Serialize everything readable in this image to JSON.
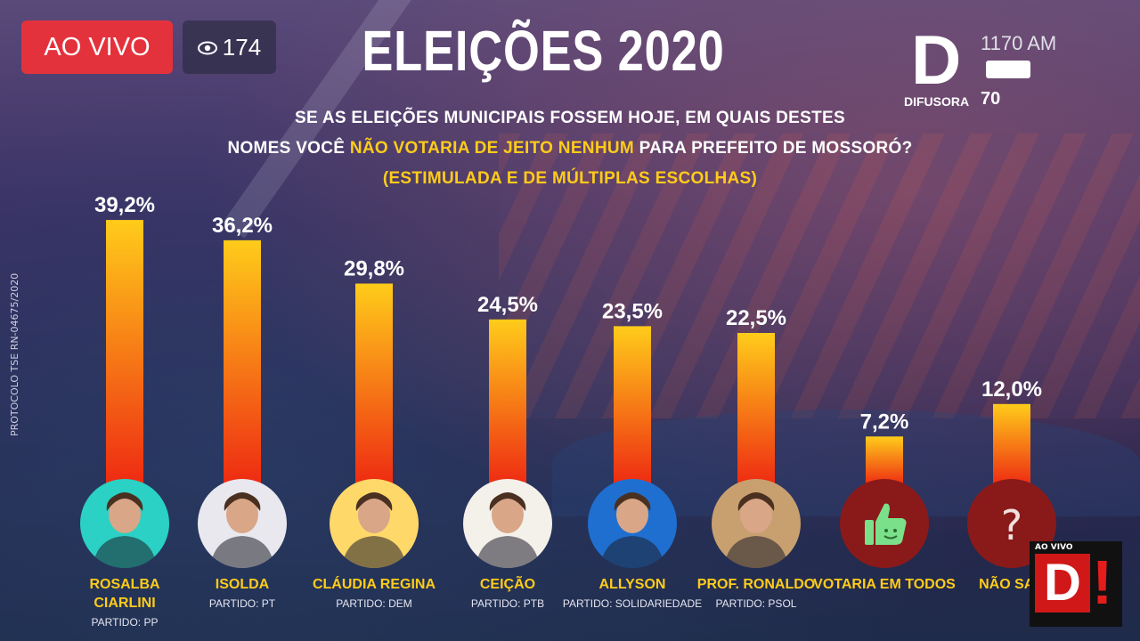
{
  "live_badge": "AO VIVO",
  "viewer_count": "174",
  "title": "ELEIÇÕES 2020",
  "question": {
    "line1": "SE AS ELEIÇÕES MUNICIPAIS FOSSEM HOJE, EM QUAIS DESTES",
    "line2_pre": "NOMES VOCÊ ",
    "line2_highlight": "NÃO VOTARIA DE JEITO NENHUM",
    "line2_post": " PARA PREFEITO DE MOSSORÓ?",
    "line3": "(ESTIMULADA E DE MÚLTIPLAS ESCOLHAS)"
  },
  "logo": {
    "letter": "D",
    "frequency": "1170 AM",
    "name": "DIFUSORA",
    "years": "70"
  },
  "protocol": "PROTOCOLO TSE RN-04675/2020",
  "corner_badge": {
    "tag": "AO VIVO",
    "letter": "D",
    "mark": "!"
  },
  "colors": {
    "bar_top": "#ffcc1a",
    "bar_bottom": "#ee2a12",
    "highlight": "#ffcc1a",
    "live": "#e4323c"
  },
  "chart_data": {
    "type": "bar",
    "categories": [
      "ROSALBA CIARLINI",
      "ISOLDA",
      "CLÁUDIA REGINA",
      "CEIÇÃO",
      "ALLYSON",
      "PROF. RONALDO",
      "VOTARIA EM TODOS",
      "NÃO SAB"
    ],
    "name_lines": [
      [
        "ROSALBA",
        "CIARLINI"
      ],
      [
        "ISOLDA"
      ],
      [
        "CLÁUDIA REGINA"
      ],
      [
        "CEIÇÃO"
      ],
      [
        "ALLYSON"
      ],
      [
        "PROF. RONALDO"
      ],
      [
        "VOTARIA EM TODOS"
      ],
      [
        "NÃO SAB"
      ]
    ],
    "parties": [
      "PARTIDO: PP",
      "PARTIDO: PT",
      "PARTIDO: DEM",
      "PARTIDO: PTB",
      "PARTIDO: SOLIDARIEDADE",
      "PARTIDO: PSOL",
      "",
      ""
    ],
    "values": [
      39.2,
      36.2,
      29.8,
      24.5,
      23.5,
      22.5,
      7.2,
      12.0
    ],
    "value_labels": [
      "39,2%",
      "36,2%",
      "29,8%",
      "24,5%",
      "23,5%",
      "22,5%",
      "7,2%",
      "12,0%"
    ],
    "avatar_icons": [
      "candidate-photo",
      "candidate-photo",
      "candidate-photo",
      "candidate-photo",
      "candidate-photo",
      "candidate-photo",
      "thumbs-up-icon",
      "question-mark-icon"
    ],
    "avatar_colors": [
      "#2ad1c4",
      "#e8e8ee",
      "#ffd86a",
      "#f4f0ea",
      "#1f6fd0",
      "#c8a070",
      "#8a1a1a",
      "#8a1a1a"
    ],
    "title": "ELEIÇÕES 2020",
    "ylim": [
      0,
      40
    ]
  }
}
